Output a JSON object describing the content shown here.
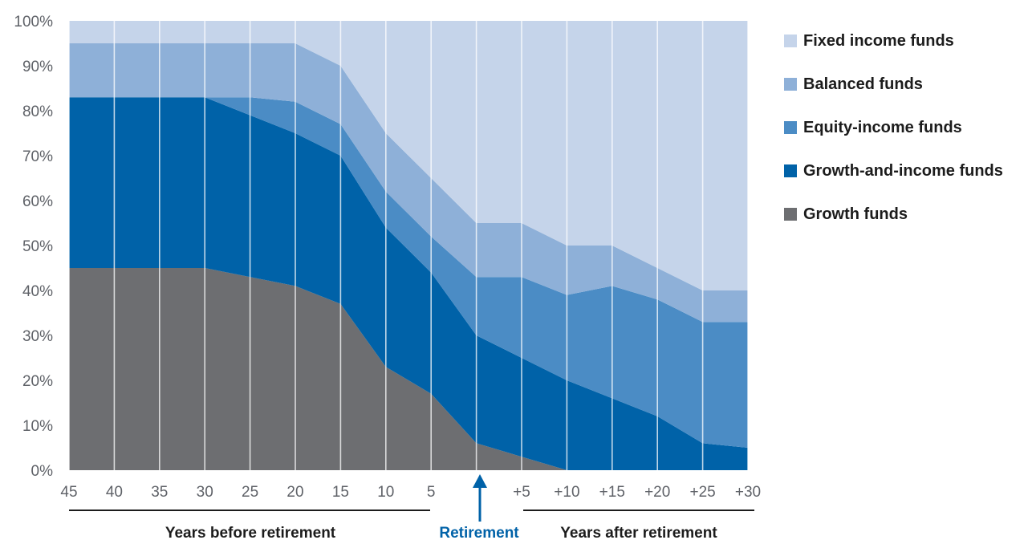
{
  "chart_data": {
    "type": "area",
    "stacked": true,
    "x_tick_labels": [
      "45",
      "40",
      "35",
      "30",
      "25",
      "20",
      "15",
      "10",
      "5",
      "",
      "+5",
      "+10",
      "+15",
      "+20",
      "+25",
      "+30"
    ],
    "y_tick_labels": [
      "0%",
      "10%",
      "20%",
      "30%",
      "40%",
      "50%",
      "60%",
      "70%",
      "80%",
      "90%",
      "100%"
    ],
    "ylim": [
      0,
      100
    ],
    "grid": "vertical",
    "legend_position": "right",
    "series": [
      {
        "name": "Growth funds",
        "color": "#6d6e71",
        "values": [
          45,
          45,
          45,
          45,
          43,
          41,
          37,
          23,
          17,
          6,
          3,
          0,
          0,
          0,
          0,
          0
        ]
      },
      {
        "name": "Growth-and-income funds",
        "color": "#0062a8",
        "values": [
          38,
          38,
          38,
          38,
          36,
          34,
          33,
          31,
          27,
          24,
          22,
          20,
          16,
          12,
          6,
          5
        ]
      },
      {
        "name": "Equity-income funds",
        "color": "#4b8cc5",
        "values": [
          0,
          0,
          0,
          0,
          4,
          7,
          7,
          8,
          8,
          13,
          18,
          19,
          25,
          26,
          27,
          28
        ]
      },
      {
        "name": "Balanced funds",
        "color": "#8eb0d8",
        "values": [
          12,
          12,
          12,
          12,
          12,
          13,
          13,
          13,
          13,
          12,
          12,
          11,
          9,
          7,
          7,
          7
        ]
      },
      {
        "name": "Fixed income funds",
        "color": "#c5d4ea",
        "values": [
          5,
          5,
          5,
          5,
          5,
          5,
          10,
          25,
          35,
          45,
          45,
          50,
          50,
          55,
          60,
          60
        ]
      }
    ],
    "legend_order": [
      "Fixed income funds",
      "Balanced funds",
      "Equity-income funds",
      "Growth-and-income funds",
      "Growth funds"
    ],
    "annotations": {
      "before_label": "Years before retirement",
      "retirement_label": "Retirement",
      "after_label": "Years after retirement",
      "retirement_color": "#0062a8"
    }
  }
}
